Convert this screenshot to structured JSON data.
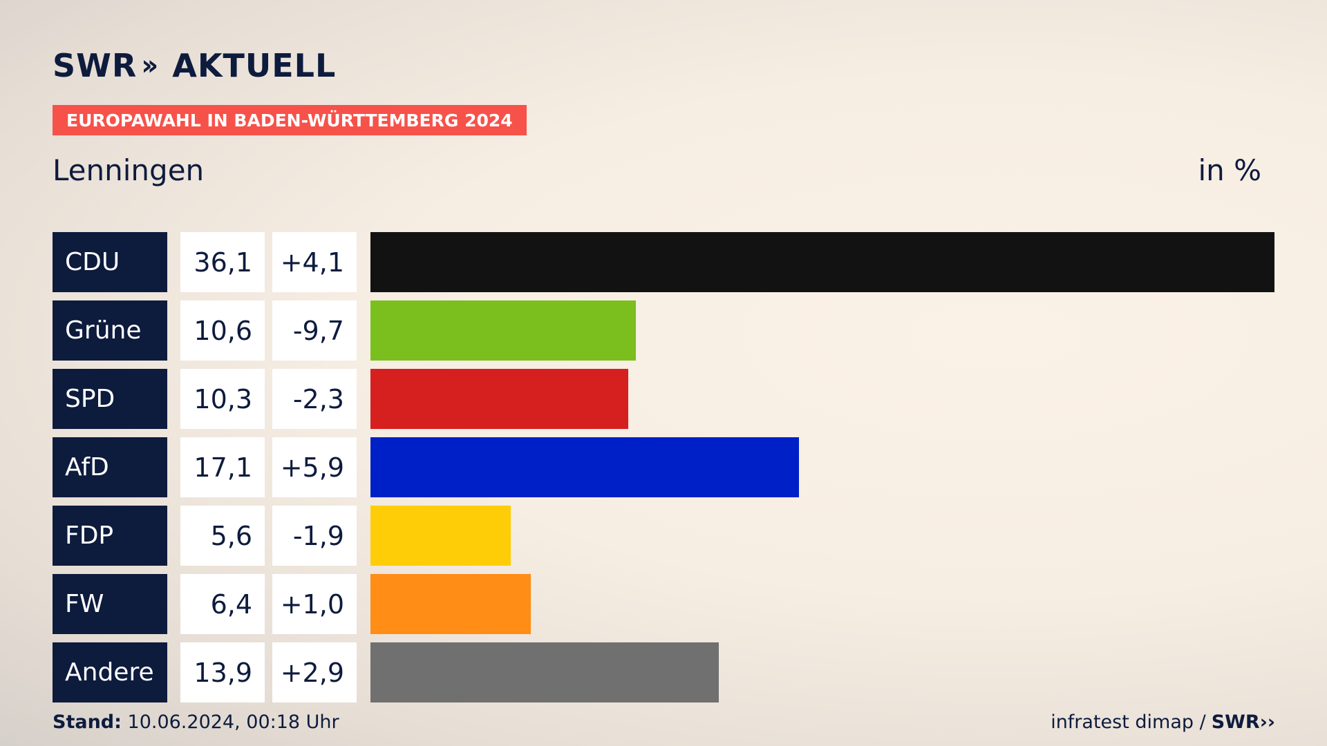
{
  "header": {
    "logo_main": "SWR",
    "logo_chevrons": "››",
    "logo_suffix": "AKTUELL",
    "banner": "EUROPAWAHL IN BADEN-WÜRTTEMBERG 2024",
    "place": "Lenningen",
    "unit": "in %"
  },
  "colors": {
    "CDU": "#121212",
    "Grüne": "#7abf1e",
    "SPD": "#d61f1f",
    "AfD": "#0020c7",
    "FDP": "#ffcd07",
    "FW": "#ff8d16",
    "Andere": "#707070"
  },
  "chart_data": {
    "type": "bar",
    "orientation": "horizontal",
    "title": "Lenningen",
    "unit": "in %",
    "categories": [
      "CDU",
      "Grüne",
      "SPD",
      "AfD",
      "FDP",
      "FW",
      "Andere"
    ],
    "values": [
      36.1,
      10.6,
      10.3,
      17.1,
      5.6,
      6.4,
      13.9
    ],
    "value_labels": [
      "36,1",
      "10,6",
      "10,3",
      "17,1",
      "5,6",
      "6,4",
      "13,9"
    ],
    "changes": [
      4.1,
      -9.7,
      -2.3,
      5.9,
      -1.9,
      1.0,
      2.9
    ],
    "change_labels": [
      "+4,1",
      "-9,7",
      "-2,3",
      "+5,9",
      "-1,9",
      "+1,0",
      "+2,9"
    ],
    "xlim": [
      0,
      36.1
    ]
  },
  "footer": {
    "stand_label": "Stand:",
    "stand_value": "10.06.2024, 00:18 Uhr",
    "source": "infratest dimap /",
    "source_logo": "SWR",
    "source_logo_chevrons": "››"
  }
}
